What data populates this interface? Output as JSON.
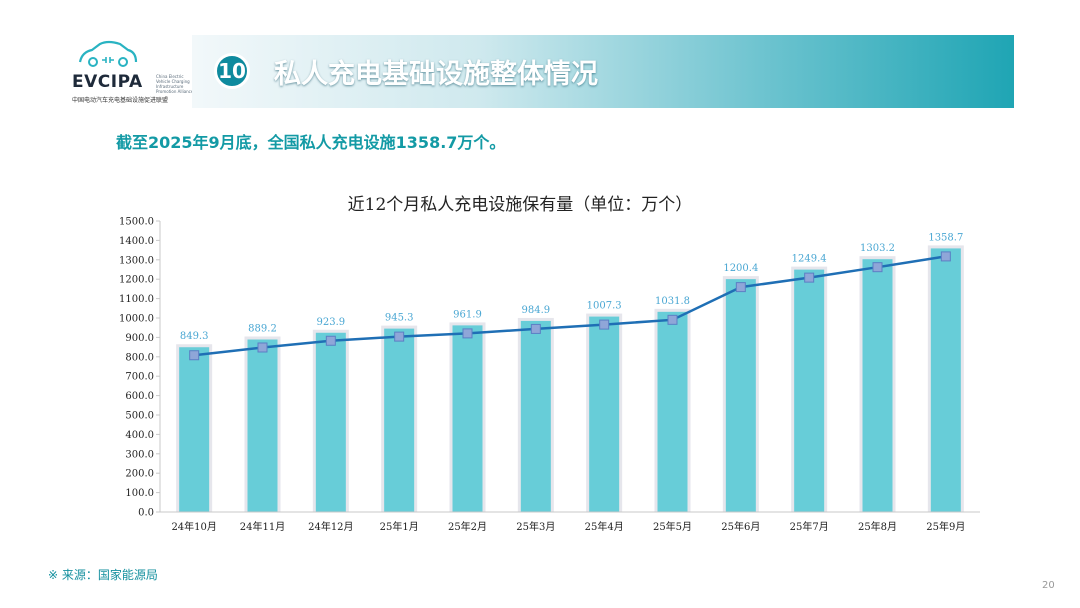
{
  "logo": {
    "name": "EVCIPA",
    "tagline": "China Electric Vehicle Charging Infrastructure Promotion Alliance",
    "cn_name": "中国电动汽车充电基础设施促进联盟"
  },
  "header": {
    "number": "10",
    "title": "私人充电基础设施整体情况"
  },
  "subtitle": "截至2025年9月底，全国私人充电设施1358.7万个。",
  "chart_data": {
    "type": "bar",
    "title": "近12个月私人充电设施保有量（单位：万个）",
    "categories": [
      "24年10月",
      "24年11月",
      "24年12月",
      "25年1月",
      "25年2月",
      "25年3月",
      "25年4月",
      "25年5月",
      "25年6月",
      "25年7月",
      "25年8月",
      "25年9月"
    ],
    "values": [
      849.3,
      889.2,
      923.9,
      945.3,
      961.9,
      984.9,
      1007.3,
      1031.8,
      1200.4,
      1249.4,
      1303.2,
      1358.7
    ],
    "value_labels": [
      "849.3",
      "889.2",
      "923.9",
      "945.3",
      "961.9",
      "984.9",
      "1007.3",
      "1031.8",
      "1200.4",
      "1249.4",
      "1303.2",
      "1358.7"
    ],
    "y_ticks": [
      "0.0",
      "100.0",
      "200.0",
      "300.0",
      "400.0",
      "500.0",
      "600.0",
      "700.0",
      "800.0",
      "900.0",
      "1000.0",
      "1100.0",
      "1200.0",
      "1300.0",
      "1400.0",
      "1500.0"
    ],
    "ylim": [
      0,
      1500
    ],
    "grid": false,
    "overlay_line": true,
    "bar_color": "#67cdd8",
    "line_color": "#1f6fb5",
    "label_color": "#4aa7d3"
  },
  "footer": {
    "source": "※ 来源：国家能源局",
    "page": "20"
  }
}
